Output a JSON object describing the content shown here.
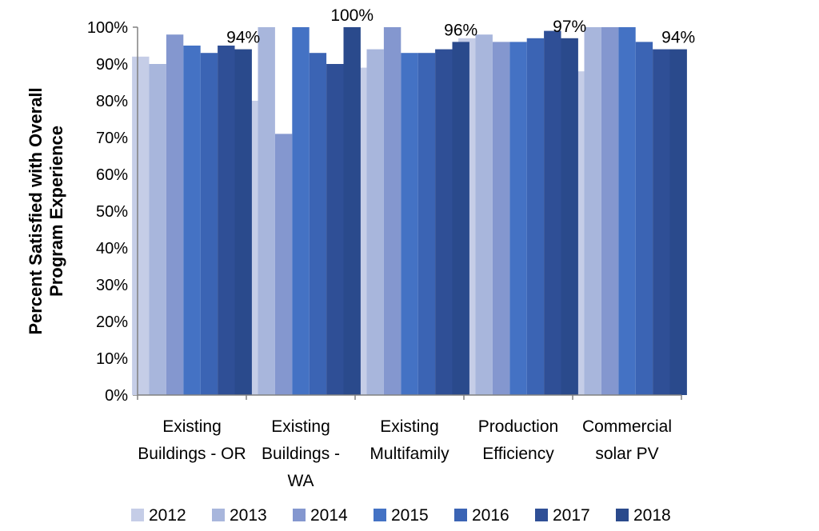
{
  "chart_data": {
    "type": "bar",
    "title": "",
    "ylabel_lines": [
      "Percent Satisfied with Overall",
      "Program Experience"
    ],
    "xlabel": "",
    "ylim": [
      0,
      100
    ],
    "y_ticks": [
      0,
      10,
      20,
      30,
      40,
      50,
      60,
      70,
      80,
      90,
      100
    ],
    "y_tick_format": "%",
    "grid": false,
    "legend_position": "bottom",
    "categories": [
      [
        "Existing",
        "Buildings - OR"
      ],
      [
        "Existing",
        "Buildings -",
        "WA"
      ],
      [
        "Existing",
        "Multifamily"
      ],
      [
        "Production",
        "Efficiency"
      ],
      [
        "Commercial",
        "solar PV"
      ]
    ],
    "series": [
      {
        "name": "2012",
        "color": "#c5cde7",
        "values": [
          92,
          80,
          89,
          97,
          88
        ]
      },
      {
        "name": "2013",
        "color": "#a8b6dc",
        "values": [
          90,
          100,
          94,
          98,
          100
        ]
      },
      {
        "name": "2014",
        "color": "#8497cf",
        "values": [
          98,
          71,
          100,
          96,
          100
        ]
      },
      {
        "name": "2015",
        "color": "#4472c4",
        "values": [
          95,
          100,
          93,
          96,
          100
        ]
      },
      {
        "name": "2016",
        "color": "#3b64b4",
        "values": [
          93,
          93,
          93,
          97,
          96
        ]
      },
      {
        "name": "2017",
        "color": "#2f4f96",
        "values": [
          95,
          90,
          94,
          99,
          94
        ]
      },
      {
        "name": "2018",
        "color": "#2a4a8c",
        "values": [
          94,
          100,
          96,
          97,
          94
        ]
      }
    ],
    "data_labels": [
      {
        "category_index": 0,
        "series": "2018",
        "text": "94%"
      },
      {
        "category_index": 1,
        "series": "2018",
        "text": "100%"
      },
      {
        "category_index": 2,
        "series": "2018",
        "text": "96%"
      },
      {
        "category_index": 3,
        "series": "2018",
        "text": "97%"
      },
      {
        "category_index": 4,
        "series": "2018",
        "text": "94%"
      }
    ]
  }
}
